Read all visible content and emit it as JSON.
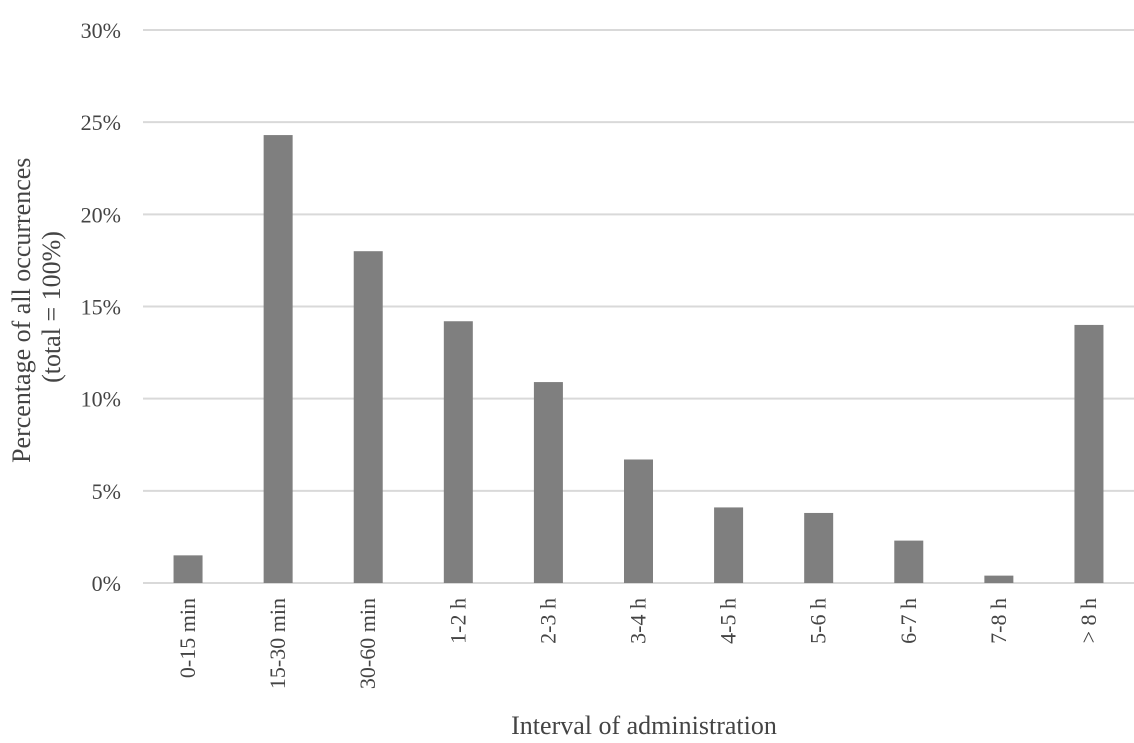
{
  "chart_data": {
    "type": "bar",
    "title": "",
    "xlabel": "Interval of administration",
    "ylabel": "Percentage of all occurrences (total = 100%)",
    "ylabel_lines": [
      "Percentage of all occurrences",
      "(total = 100%)"
    ],
    "categories": [
      "0-15 min",
      "15-30 min",
      "30-60 min",
      "1-2 h",
      "2-3 h",
      "3-4 h",
      "4-5 h",
      "5-6 h",
      "6-7 h",
      "7-8 h",
      "> 8 h"
    ],
    "values": [
      1.5,
      24.3,
      18.0,
      14.2,
      10.9,
      6.7,
      4.1,
      3.8,
      2.3,
      0.4,
      14.0
    ],
    "ylim": [
      0,
      30
    ],
    "yticks": [
      0,
      5,
      10,
      15,
      20,
      25,
      30
    ],
    "ytick_labels": [
      "0%",
      "5%",
      "10%",
      "15%",
      "20%",
      "25%",
      "30%"
    ],
    "grid": true,
    "legend": "none",
    "bar_color": "#7f7f7f",
    "grid_color": "#d9d9d9"
  }
}
